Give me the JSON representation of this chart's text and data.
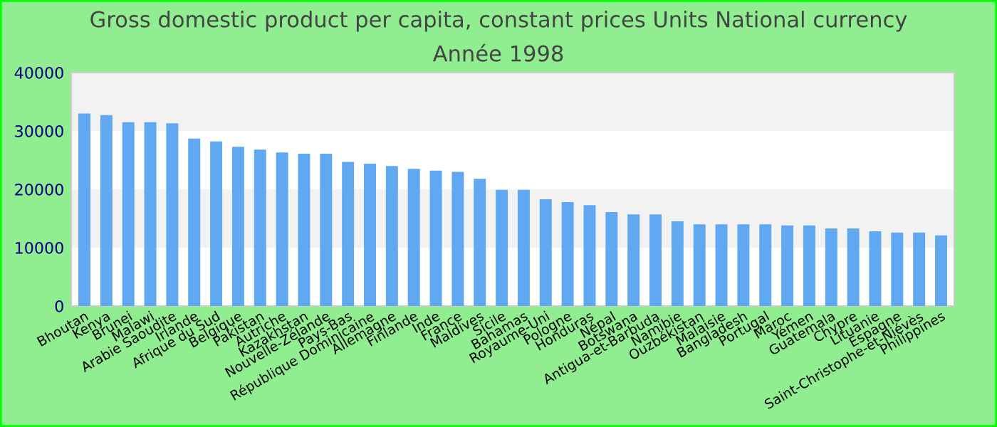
{
  "chart_data": {
    "type": "bar",
    "title": "Gross domestic product per capita, constant prices Units National currency",
    "subtitle": "Année 1998",
    "categories": [
      "Bhoutan",
      "Kenya",
      "Brunei",
      "Malawi",
      "Arabie Saoudite",
      "Irlande",
      "Afrique du Sud",
      "Belgique",
      "Pakistan",
      "Autriche",
      "Kazakhstan",
      "Nouvelle-Zélande",
      "Pays-Bas",
      "République Dominicaine",
      "Allemagne",
      "Finlande",
      "Inde",
      "France",
      "Maldives",
      "Sicile",
      "Bahamas",
      "Royaume-Uni",
      "Pologne",
      "Honduras",
      "Népal",
      "Botswana",
      "Antigua-et-Barbuda",
      "Namibie",
      "Ouzbékistan",
      "Malaisie",
      "Bangladesh",
      "Portugal",
      "Maroc",
      "Yémen",
      "Guatemala",
      "Chypre",
      "Lituanie",
      "Espagne",
      "Saint-Christophe-et-Niévès",
      "Philippines"
    ],
    "values": [
      33000,
      32700,
      31500,
      31500,
      31300,
      28700,
      28200,
      27300,
      26800,
      26300,
      26100,
      26100,
      24700,
      24400,
      24000,
      23500,
      23200,
      23000,
      21800,
      19900,
      19900,
      18300,
      17800,
      17300,
      16100,
      15700,
      15700,
      14500,
      14000,
      14000,
      14000,
      14000,
      13800,
      13800,
      13300,
      13300,
      12800,
      12600,
      12600,
      12100
    ],
    "color": "#60a8f2",
    "ylim": [
      0,
      40000
    ],
    "yticks": [
      0,
      10000,
      20000,
      30000,
      40000
    ],
    "bands": [
      {
        "axis": "y",
        "from": 10000,
        "to": 20000,
        "color": "#f2f2f2"
      },
      {
        "axis": "y",
        "from": 30000,
        "to": 40000,
        "color": "#f2f2f2"
      }
    ]
  }
}
